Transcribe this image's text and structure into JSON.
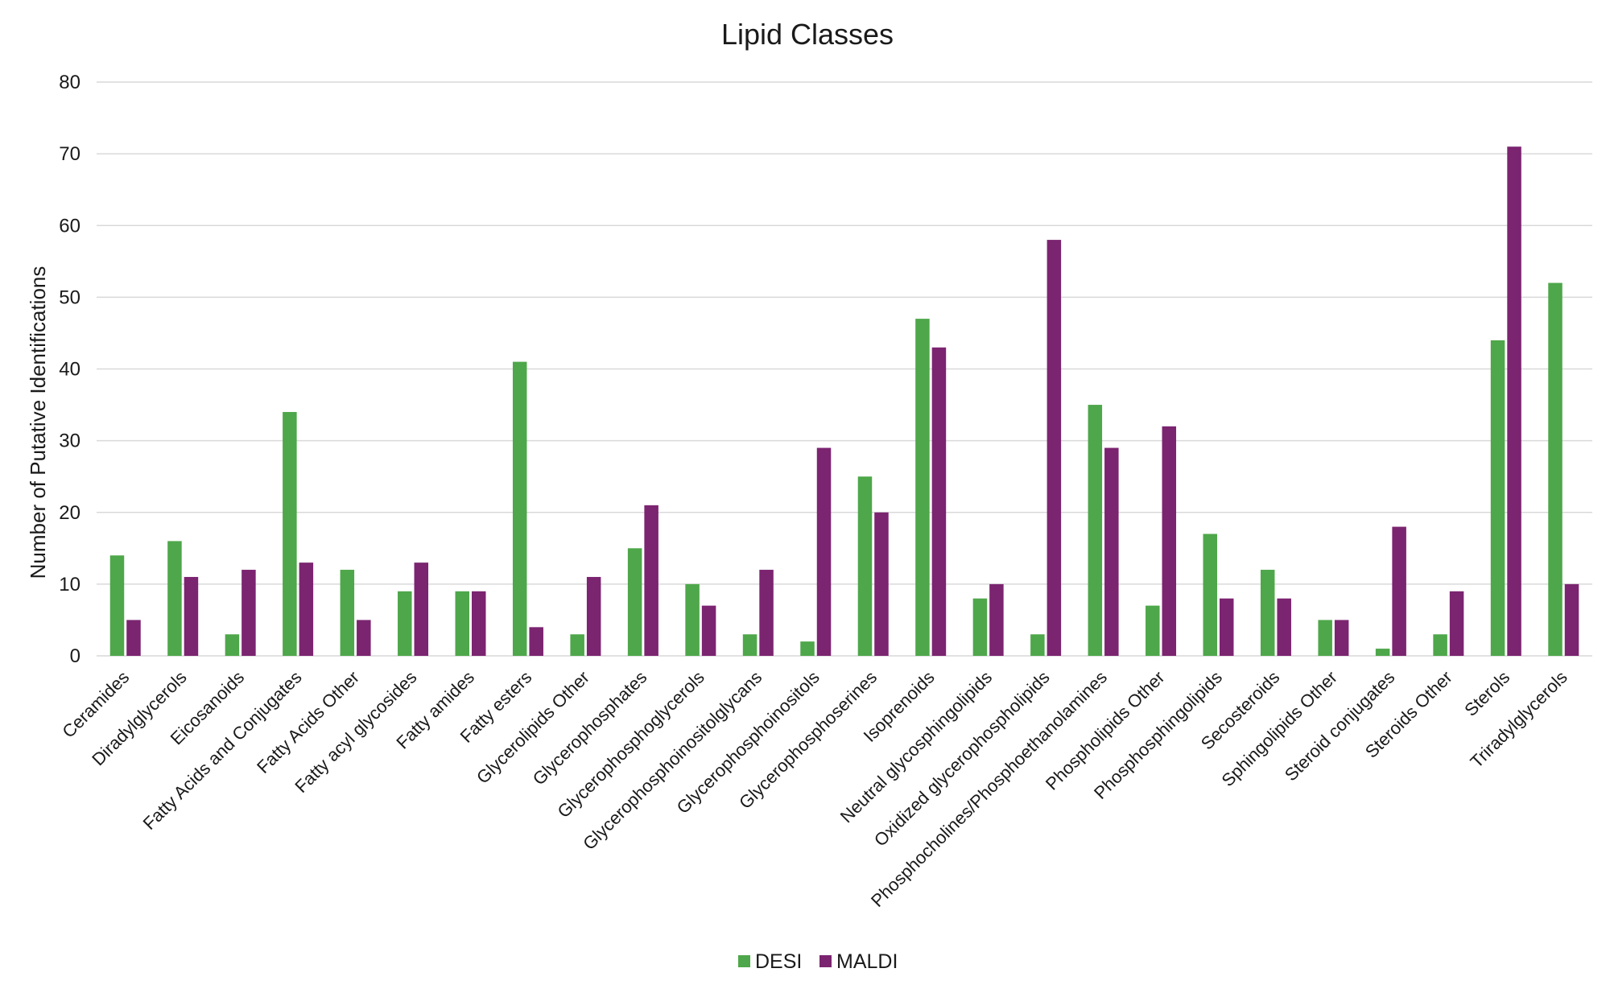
{
  "chart_data": {
    "type": "bar",
    "title": "Lipid Classes",
    "xlabel": "",
    "ylabel": "Number of Putative Identifications",
    "ylim": [
      0,
      80
    ],
    "yticks": [
      0,
      10,
      20,
      30,
      40,
      50,
      60,
      70,
      80
    ],
    "grid": true,
    "legend_position": "bottom",
    "categories": [
      "Ceramides",
      "Diradylglycerols",
      "Eicosanoids",
      "Fatty Acids and Conjugates",
      "Fatty Acids Other",
      "Fatty acyl glycosides",
      "Fatty amides",
      "Fatty esters",
      "Glycerolipids Other",
      "Glycerophosphates",
      "Glycerophosphoglycerols",
      "Glycerophosphoinositolglycans",
      "Glycerophosphoinositols",
      "Glycerophosphoserines",
      "Isoprenoids",
      "Neutral glycosphingolipids",
      "Oxidized glycerophospholipids",
      "Phosphocholines/Phosphoethanolamines",
      "Phospholipids Other",
      "Phosphosphingolipids",
      "Secosteroids",
      "Sphingolipids Other",
      "Steroid conjugates",
      "Steroids Other",
      "Sterols",
      "Triradylglycerols"
    ],
    "series": [
      {
        "name": "DESI",
        "color": "#4ea74a",
        "values": [
          14,
          16,
          3,
          34,
          12,
          9,
          9,
          41,
          3,
          15,
          10,
          3,
          2,
          25,
          47,
          8,
          3,
          35,
          7,
          17,
          12,
          5,
          1,
          3,
          44,
          52
        ]
      },
      {
        "name": "MALDI",
        "color": "#7b2470",
        "values": [
          5,
          11,
          12,
          13,
          5,
          13,
          9,
          4,
          11,
          21,
          7,
          12,
          29,
          20,
          43,
          10,
          58,
          29,
          32,
          8,
          8,
          5,
          18,
          9,
          71,
          10
        ]
      }
    ]
  }
}
